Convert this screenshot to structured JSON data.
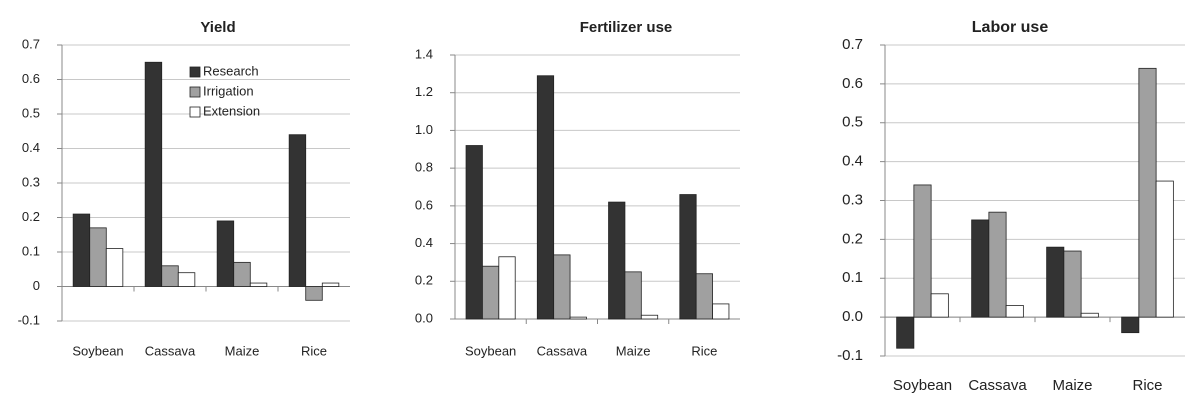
{
  "chart_data": [
    {
      "type": "bar",
      "title": "Yield",
      "categories": [
        "Soybean",
        "Cassava",
        "Maize",
        "Rice"
      ],
      "series": [
        {
          "name": "Research",
          "color": "#333333",
          "values": [
            0.21,
            0.65,
            0.19,
            0.44
          ]
        },
        {
          "name": "Irrigation",
          "color": "#a0a0a0",
          "values": [
            0.17,
            0.06,
            0.07,
            -0.04
          ]
        },
        {
          "name": "Extension",
          "color": "#ffffff",
          "values": [
            0.11,
            0.04,
            0.01,
            0.01
          ]
        }
      ],
      "ylim": [
        -0.1,
        0.7
      ],
      "yticks": [
        -0.1,
        0,
        0.1,
        0.2,
        0.3,
        0.4,
        0.5,
        0.6,
        0.7
      ],
      "grid": true,
      "legend": "upper-right"
    },
    {
      "type": "bar",
      "title": "Fertilizer use",
      "categories": [
        "Soybean",
        "Cassava",
        "Maize",
        "Rice"
      ],
      "series": [
        {
          "color": "#333333",
          "values": [
            0.92,
            1.29,
            0.62,
            0.66
          ]
        },
        {
          "color": "#a0a0a0",
          "values": [
            0.28,
            0.34,
            0.25,
            0.24
          ]
        },
        {
          "color": "#ffffff",
          "values": [
            0.33,
            0.01,
            0.02,
            0.08
          ]
        }
      ],
      "ylim": [
        0,
        1.4
      ],
      "yticks": [
        {
          "value": 0,
          "label": "0.0"
        },
        0.2,
        0.4,
        0.6,
        0.8,
        {
          "value": 1,
          "label": "1.0"
        },
        1.2,
        1.4
      ],
      "grid": true
    },
    {
      "type": "bar",
      "title": "Labor use",
      "categories": [
        "Soybean",
        "Cassava",
        "Maize",
        "Rice"
      ],
      "series": [
        {
          "color": "#333333",
          "values": [
            -0.08,
            0.25,
            0.18,
            -0.04
          ]
        },
        {
          "color": "#a0a0a0",
          "values": [
            0.34,
            0.27,
            0.17,
            0.64
          ]
        },
        {
          "color": "#ffffff",
          "values": [
            0.06,
            0.03,
            0.01,
            0.35
          ]
        }
      ],
      "ylim": [
        -0.1,
        0.7
      ],
      "yticks": [
        -0.1,
        {
          "value": 0,
          "label": "0.0"
        },
        0.1,
        0.2,
        0.3,
        0.4,
        0.5,
        0.6,
        0.7
      ],
      "grid": true
    }
  ]
}
